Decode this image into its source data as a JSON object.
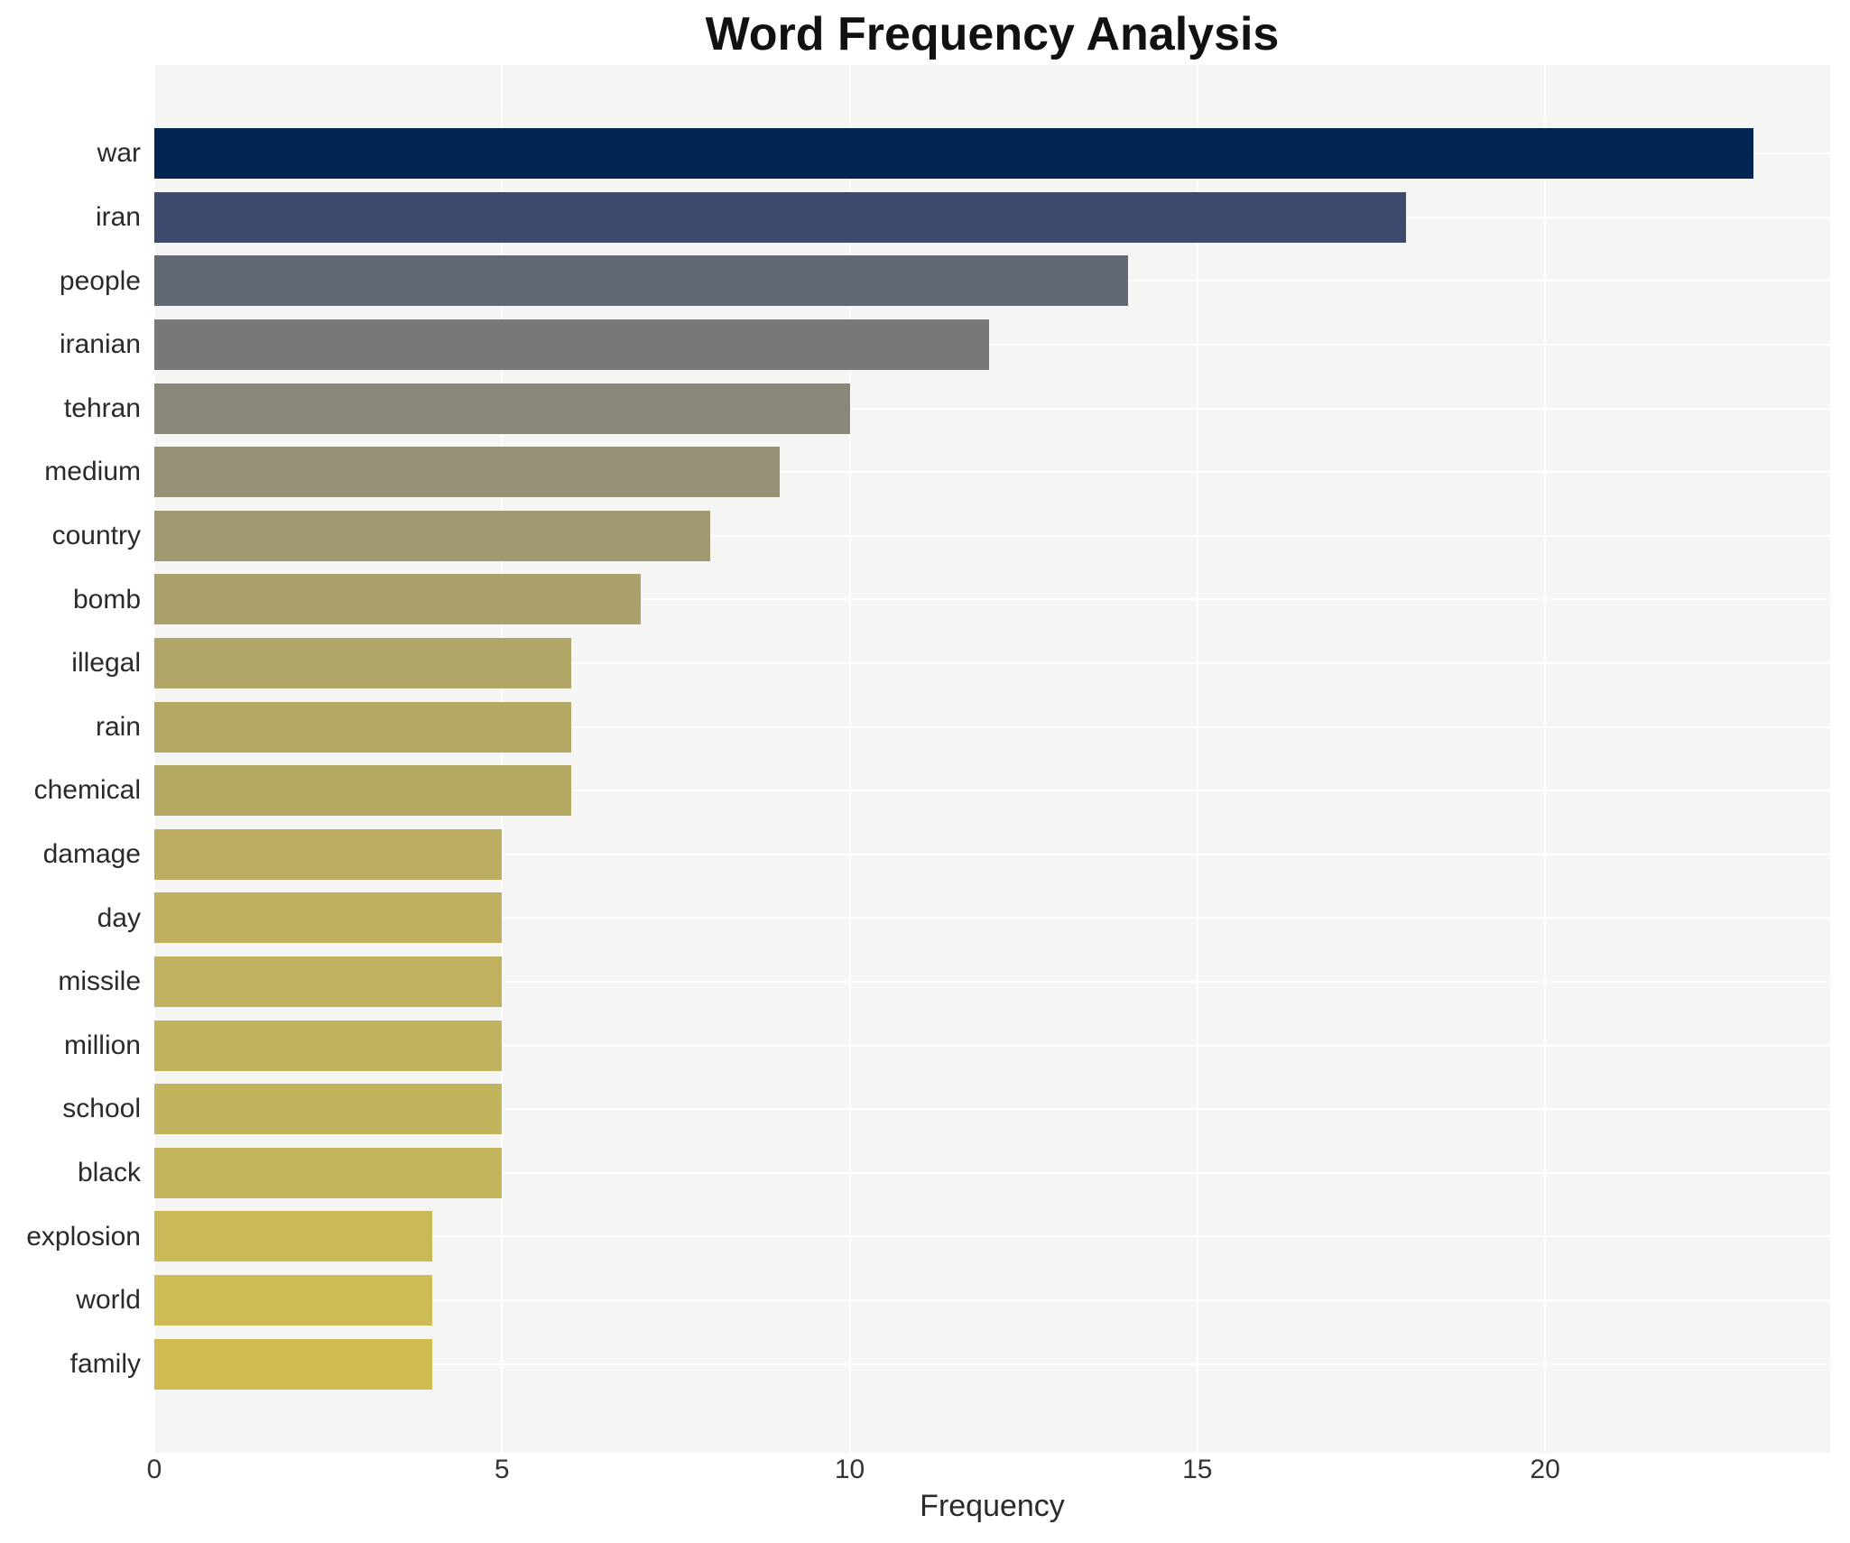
{
  "title": "Word Frequency Analysis",
  "x_axis": {
    "label": "Frequency",
    "ticks": [
      0,
      5,
      10,
      15,
      20
    ]
  },
  "chart_data": {
    "type": "bar",
    "orientation": "horizontal",
    "title": "Word Frequency Analysis",
    "xlabel": "Frequency",
    "ylabel": "",
    "categories": [
      "war",
      "iran",
      "people",
      "iranian",
      "tehran",
      "medium",
      "country",
      "bomb",
      "illegal",
      "rain",
      "chemical",
      "damage",
      "day",
      "missile",
      "million",
      "school",
      "black",
      "explosion",
      "world",
      "family"
    ],
    "values": [
      23,
      18,
      14,
      12,
      10,
      9,
      8,
      7,
      6,
      6,
      6,
      5,
      5,
      5,
      5,
      5,
      5,
      4,
      4,
      4
    ],
    "bar_colors": [
      "#032552",
      "#3e4a6d",
      "#636973",
      "#77787a",
      "#8a8779",
      "#969074",
      "#a09870",
      "#a9a06c",
      "#b0a667",
      "#b3a965",
      "#b4aa64",
      "#bcae61",
      "#beb060",
      "#bfb15f",
      "#c0b35e",
      "#c1b45d",
      "#c3b55c",
      "#cab959",
      "#cdbb55",
      "#cfbc53"
    ],
    "xlim": [
      0,
      24.1
    ],
    "grid": true,
    "gridline_color": "#ffffff",
    "plot_background": "#f5f5f3",
    "page_background": "#ffffff",
    "legend": "none"
  }
}
